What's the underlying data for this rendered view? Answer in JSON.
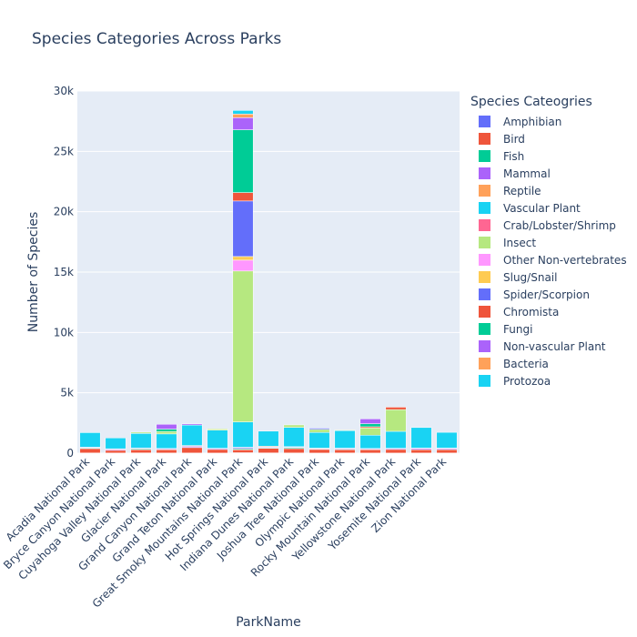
{
  "chart_data": {
    "type": "bar",
    "stacked": true,
    "title": "Species Categories Across Parks",
    "xlabel": "ParkName",
    "ylabel": "Number of Species",
    "ylim": [
      0,
      30000
    ],
    "yticks": [
      0,
      5000,
      10000,
      15000,
      20000,
      25000,
      30000
    ],
    "ytick_labels": [
      "0",
      "5k",
      "10k",
      "15k",
      "20k",
      "25k",
      "30k"
    ],
    "grid": true,
    "legend_title": "Species Cateogries",
    "legend_position": "right",
    "categories": [
      "Acadia National Park",
      "Bryce Canyon National Park",
      "Cuyahoga Valley National Park",
      "Glacier National Park",
      "Grand Canyon National Park",
      "Grand Teton National Park",
      "Great Smoky Mountains National Park",
      "Hot Springs National Park",
      "Indiana Dunes National Park",
      "Joshua Tree National Park",
      "Olympic National Park",
      "Rocky Mountain National Park",
      "Yellowstone National Park",
      "Yosemite National Park",
      "Zion National Park"
    ],
    "series": [
      {
        "name": "Amphibian",
        "color": "#636efa",
        "values": [
          20,
          15,
          25,
          15,
          15,
          10,
          40,
          25,
          20,
          10,
          20,
          10,
          10,
          15,
          15
        ]
      },
      {
        "name": "Bird",
        "color": "#EF553B",
        "values": [
          360,
          220,
          260,
          270,
          450,
          300,
          240,
          380,
          360,
          300,
          270,
          280,
          300,
          270,
          280
        ]
      },
      {
        "name": "Fish",
        "color": "#00cc96",
        "values": [
          50,
          20,
          70,
          30,
          20,
          20,
          80,
          50,
          80,
          0,
          50,
          20,
          20,
          20,
          20
        ]
      },
      {
        "name": "Mammal",
        "color": "#ab63fa",
        "values": [
          60,
          80,
          60,
          70,
          90,
          70,
          90,
          60,
          50,
          60,
          70,
          70,
          70,
          90,
          80
        ]
      },
      {
        "name": "Reptile",
        "color": "#FFA15A",
        "values": [
          10,
          30,
          20,
          10,
          60,
          10,
          40,
          60,
          30,
          50,
          10,
          10,
          10,
          30,
          30
        ]
      },
      {
        "name": "Vascular Plant",
        "color": "#19d3f3",
        "values": [
          1200,
          900,
          1200,
          1200,
          1700,
          1500,
          2100,
          1250,
          1600,
          1300,
          1450,
          1100,
          1400,
          1700,
          1300
        ]
      },
      {
        "name": "Crab/Lobster/Shrimp",
        "color": "#FF6692",
        "values": [
          0,
          0,
          0,
          0,
          0,
          0,
          0,
          0,
          0,
          0,
          0,
          0,
          0,
          0,
          0
        ]
      },
      {
        "name": "Insect",
        "color": "#B6E880",
        "values": [
          0,
          0,
          100,
          200,
          0,
          100,
          12500,
          0,
          200,
          250,
          50,
          600,
          1800,
          0,
          0
        ]
      },
      {
        "name": "Other Non-vertebrates",
        "color": "#FF97FF",
        "values": [
          0,
          0,
          0,
          0,
          0,
          0,
          900,
          0,
          0,
          0,
          0,
          0,
          0,
          0,
          0
        ]
      },
      {
        "name": "Slug/Snail",
        "color": "#FECB52",
        "values": [
          0,
          0,
          0,
          0,
          0,
          0,
          300,
          0,
          0,
          0,
          0,
          0,
          0,
          0,
          0
        ]
      },
      {
        "name": "Spider/Scorpion",
        "color": "#636efa",
        "values": [
          0,
          0,
          0,
          0,
          0,
          0,
          4600,
          0,
          0,
          100,
          0,
          0,
          0,
          0,
          0
        ]
      },
      {
        "name": "Chromista",
        "color": "#EF553B",
        "values": [
          0,
          0,
          0,
          0,
          0,
          0,
          700,
          0,
          0,
          0,
          0,
          100,
          200,
          0,
          0
        ]
      },
      {
        "name": "Fungi",
        "color": "#00cc96",
        "values": [
          0,
          0,
          0,
          200,
          0,
          0,
          5200,
          0,
          0,
          0,
          0,
          250,
          0,
          0,
          0
        ]
      },
      {
        "name": "Non-vascular Plant",
        "color": "#ab63fa",
        "values": [
          0,
          0,
          0,
          400,
          100,
          0,
          1000,
          0,
          0,
          0,
          0,
          400,
          0,
          0,
          0
        ]
      },
      {
        "name": "Bacteria",
        "color": "#FFA15A",
        "values": [
          0,
          0,
          0,
          0,
          0,
          0,
          300,
          0,
          0,
          0,
          0,
          0,
          0,
          0,
          0
        ]
      },
      {
        "name": "Protozoa",
        "color": "#19d3f3",
        "values": [
          0,
          0,
          0,
          0,
          0,
          0,
          300,
          0,
          0,
          0,
          0,
          0,
          0,
          0,
          0
        ]
      }
    ]
  }
}
